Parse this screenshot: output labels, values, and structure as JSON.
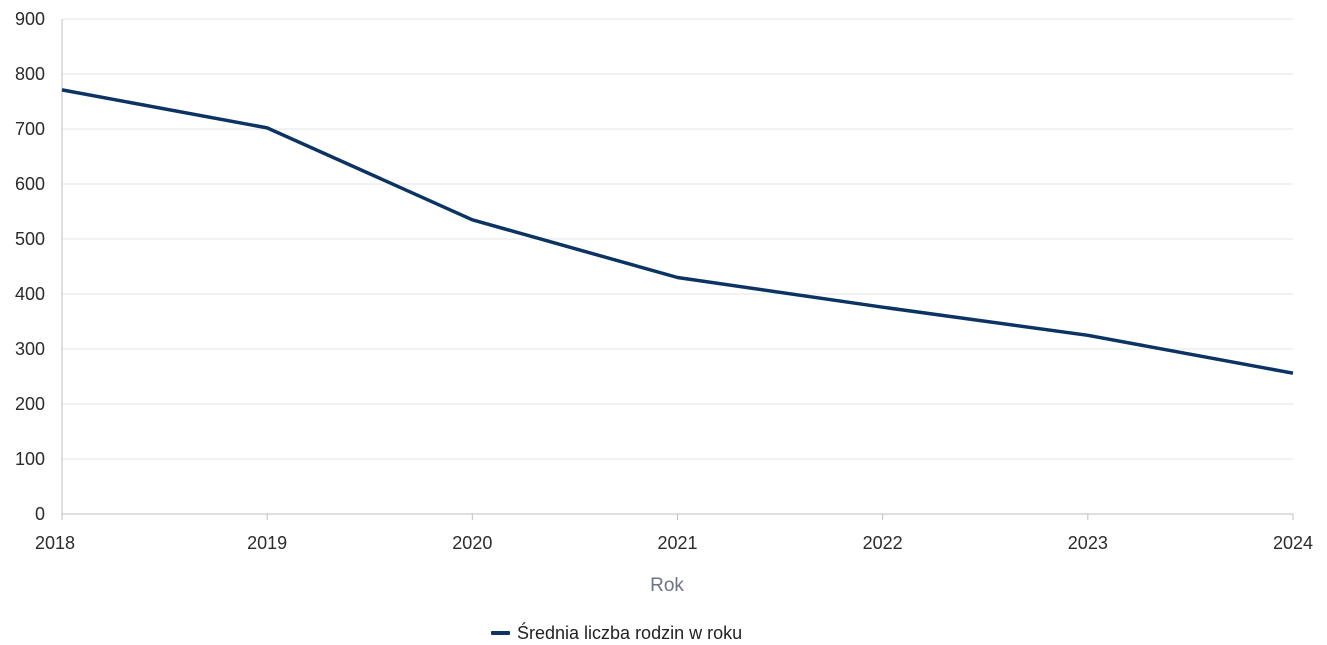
{
  "chart_data": {
    "type": "line",
    "title": "",
    "xlabel": "Rok",
    "ylabel": "",
    "x": [
      2018,
      2019,
      2020,
      2021,
      2022,
      2023,
      2024
    ],
    "xticks": [
      "2018",
      "2019",
      "2020",
      "2021",
      "2022",
      "2023",
      "2024"
    ],
    "yticks": [
      "0",
      "100",
      "200",
      "300",
      "400",
      "500",
      "600",
      "700",
      "800",
      "900"
    ],
    "ylim": [
      0,
      900
    ],
    "grid": true,
    "legend_position": "bottom-center",
    "series": [
      {
        "name": "Średnia liczba rodzin w roku",
        "color": "#0c3462",
        "values": [
          771,
          702,
          535,
          430,
          376,
          325,
          256
        ]
      }
    ]
  },
  "colors": {
    "line": "#0c3462",
    "grid": "#e6e6e6",
    "axis": "#bfbfbf",
    "axis_title": "#6b7388"
  }
}
